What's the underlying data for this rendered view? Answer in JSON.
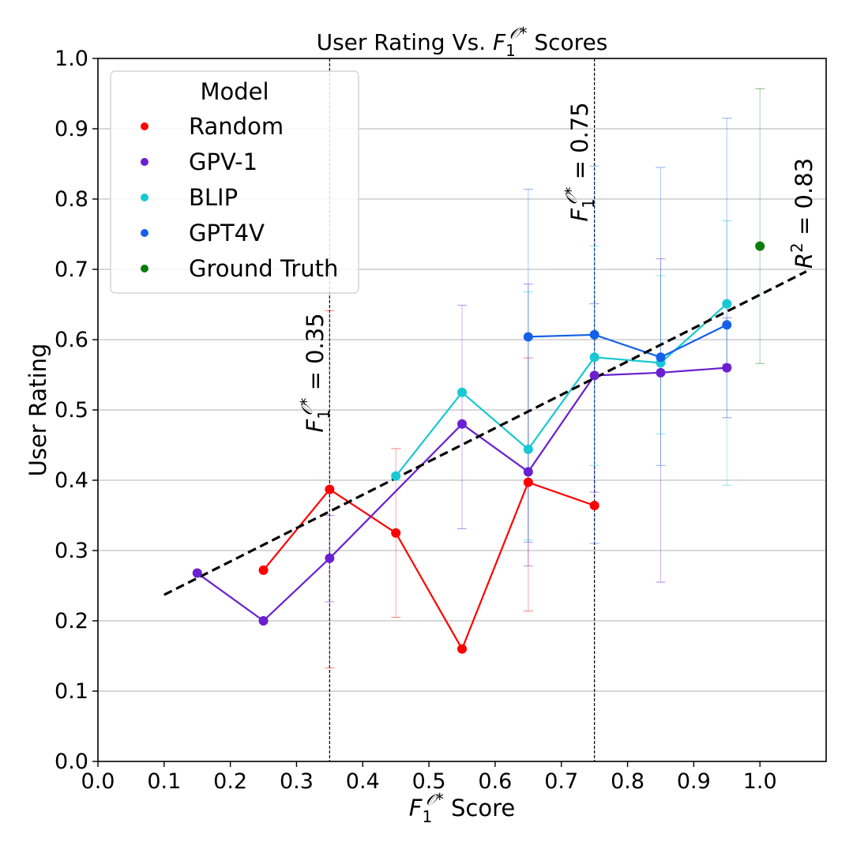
{
  "chart_data": {
    "type": "line",
    "title": {
      "prefix": "User Rating Vs. ",
      "base": "F",
      "sub": "1",
      "sup_script": "𝒪",
      "sup_star": "*",
      "suffix": " Scores"
    },
    "xlabel": {
      "base": "F",
      "sub": "1",
      "sup_script": "𝒪",
      "sup_star": "*",
      "suffix": " Score"
    },
    "ylabel": "User Rating",
    "xlim": [
      0.0,
      1.1
    ],
    "ylim": [
      0.0,
      1.0
    ],
    "x_ticks": [
      0.0,
      0.1,
      0.2,
      0.3,
      0.4,
      0.5,
      0.6,
      0.7,
      0.8,
      0.9,
      1.0
    ],
    "x_tick_labels": [
      "0.0",
      "0.1",
      "0.2",
      "0.3",
      "0.4",
      "0.5",
      "0.6",
      "0.7",
      "0.8",
      "0.9",
      "1.0"
    ],
    "y_ticks": [
      0.0,
      0.1,
      0.2,
      0.3,
      0.4,
      0.5,
      0.6,
      0.7,
      0.8,
      0.9,
      1.0
    ],
    "y_tick_labels": [
      "0.0",
      "0.1",
      "0.2",
      "0.3",
      "0.4",
      "0.5",
      "0.6",
      "0.7",
      "0.8",
      "0.9",
      "1.0"
    ],
    "grid": "horizontal",
    "legend": {
      "title": "Model",
      "placement": "top-left"
    },
    "series": [
      {
        "name": "Random",
        "color": "#ff0000",
        "x": [
          0.25,
          0.35,
          0.45,
          0.55,
          0.65,
          0.75
        ],
        "y": [
          0.272,
          0.387,
          0.325,
          0.16,
          0.397,
          0.364
        ],
        "err_low": [
          null,
          0.133,
          0.205,
          0.0,
          0.214,
          null
        ],
        "err_high": [
          null,
          0.641,
          0.445,
          0.0,
          0.574,
          null
        ]
      },
      {
        "name": "GPV-1",
        "color": "#6a1fd1",
        "x": [
          0.15,
          0.25,
          0.35,
          0.55,
          0.65,
          0.75,
          0.85,
          0.95
        ],
        "y": [
          0.268,
          0.2,
          0.289,
          0.48,
          0.412,
          0.549,
          0.553,
          0.56
        ],
        "err_low": [
          null,
          null,
          0.227,
          0.331,
          0.278,
          0.383,
          0.255,
          0.489
        ],
        "err_high": [
          null,
          null,
          0.35,
          0.649,
          0.679,
          0.651,
          0.715,
          0.631
        ]
      },
      {
        "name": "BLIP",
        "color": "#19c8d2",
        "x": [
          0.45,
          0.55,
          0.65,
          0.75,
          0.85,
          0.95
        ],
        "y": [
          0.406,
          0.525,
          0.444,
          0.575,
          0.567,
          0.651
        ],
        "err_low": [
          null,
          null,
          0.315,
          0.421,
          0.466,
          0.393
        ],
        "err_high": [
          null,
          null,
          0.668,
          0.733,
          0.691,
          0.769
        ]
      },
      {
        "name": "GPT4V",
        "color": "#1560e8",
        "x": [
          0.65,
          0.75,
          0.85,
          0.95
        ],
        "y": [
          0.604,
          0.607,
          0.575,
          0.621
        ],
        "err_low": [
          0.312,
          0.31,
          0.421,
          0.565
        ],
        "err_high": [
          0.814,
          0.847,
          0.845,
          0.915
        ]
      },
      {
        "name": "Ground Truth",
        "color": "#0a7d0a",
        "x": [
          1.0
        ],
        "y": [
          0.733
        ],
        "err_low": [
          0.566
        ],
        "err_high": [
          0.957
        ]
      }
    ],
    "trendline": {
      "x": [
        0.1,
        1.07
      ],
      "y": [
        0.237,
        0.697
      ],
      "r2_label": "R",
      "r2_sup": "2",
      "r2_value": " = 0.83"
    },
    "vlines": [
      {
        "x": 0.35,
        "base": "F",
        "sub": "1",
        "sup_script": "𝒪",
        "sup_star": "*",
        "value": "  =  0.35"
      },
      {
        "x": 0.75,
        "base": "F",
        "sub": "1",
        "sup_script": "𝒪",
        "sup_star": "*",
        "value": "  =  0.75"
      }
    ]
  }
}
